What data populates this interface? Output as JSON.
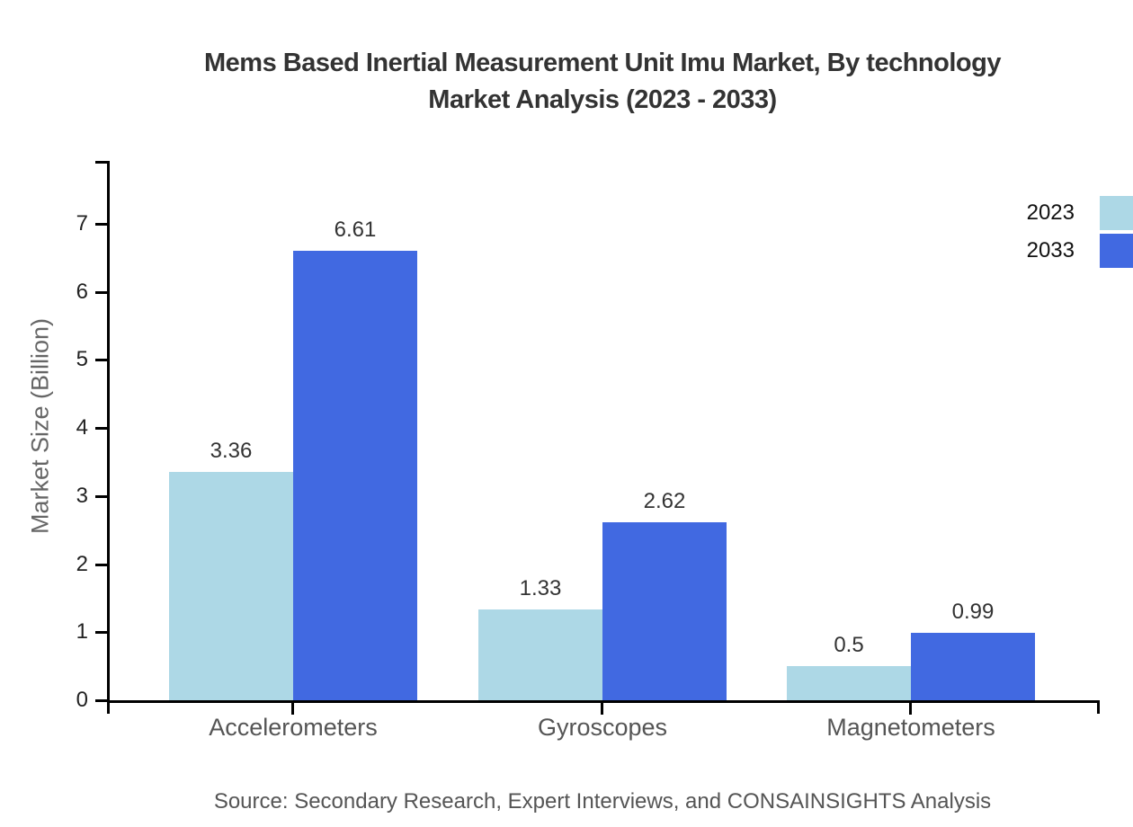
{
  "chart_data": {
    "type": "bar",
    "title": "Mems Based Inertial Measurement Unit Imu Market, By technology Market Analysis (2023 - 2033)",
    "title_lines": [
      "Mems Based Inertial Measurement Unit Imu Market, By technology",
      "Market Analysis (2023 - 2033)"
    ],
    "xlabel": "",
    "ylabel": "Market Size (Billion)",
    "categories": [
      "Accelerometers",
      "Gyroscopes",
      "Magnetometers"
    ],
    "series": [
      {
        "name": "2023",
        "values": [
          3.36,
          1.33,
          0.5
        ],
        "color": "#ADD8E6"
      },
      {
        "name": "2033",
        "values": [
          6.61,
          2.62,
          0.99
        ],
        "color": "#4169E1"
      }
    ],
    "y_ticks": [
      0,
      1,
      2,
      3,
      4,
      5,
      6,
      7
    ],
    "ylim": [
      0,
      7.9
    ],
    "grid": false,
    "legend_position": "top-right",
    "value_labels": true
  },
  "footer": {
    "source_note": "Source: Secondary Research, Expert Interviews, and CONSAINSIGHTS Analysis"
  },
  "colors": {
    "series_2023": "#ADD8E6",
    "series_2033": "#4169E1",
    "axis": "#000000",
    "title_text": "#333333",
    "tick_text": "#222222",
    "category_text": "#555555",
    "value_label_text": "#333333",
    "source_text": "#555555"
  }
}
